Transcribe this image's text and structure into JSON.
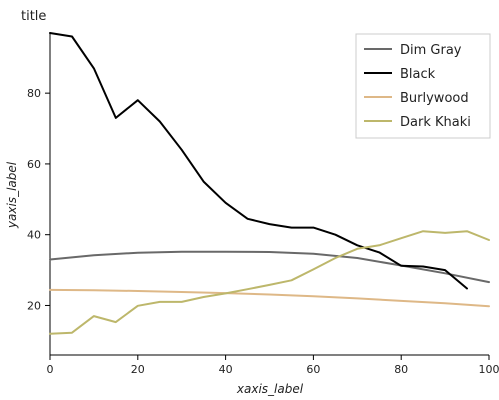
{
  "chart_data": {
    "type": "line",
    "title": "title",
    "xlabel": "xaxis_label",
    "ylabel": "yaxis_label",
    "xlim": [
      0,
      100
    ],
    "ylim": [
      6,
      97
    ],
    "xticks": [
      0,
      20,
      40,
      60,
      80,
      100
    ],
    "xtick_labels": [
      "0",
      "20",
      "40",
      "60",
      "80",
      "100"
    ],
    "yticks": [
      20,
      40,
      60,
      80
    ],
    "ytick_labels": [
      "20",
      "40",
      "60",
      "80"
    ],
    "grid": false,
    "legend_position": "top-right",
    "series": [
      {
        "name": "Dim Gray",
        "color": "#696969",
        "x": [
          0,
          10,
          20,
          30,
          40,
          50,
          60,
          70,
          80,
          90,
          100
        ],
        "y": [
          33.0,
          34.2,
          34.9,
          35.2,
          35.2,
          35.1,
          34.6,
          33.4,
          31.3,
          29.1,
          26.6
        ]
      },
      {
        "name": "Black",
        "color": "#000000",
        "x": [
          0,
          5,
          10,
          15,
          20,
          25,
          30,
          35,
          40,
          45,
          50,
          55,
          60,
          65,
          70,
          75,
          80,
          85,
          90,
          95
        ],
        "y": [
          97.0,
          96.0,
          87.0,
          73.0,
          78.0,
          72.0,
          64.0,
          55.0,
          49.0,
          44.5,
          43.0,
          42.0,
          42.0,
          40.0,
          37.0,
          35.0,
          31.2,
          31.0,
          30.0,
          24.8
        ]
      },
      {
        "name": "Burlywood",
        "color": "#deb887",
        "x": [
          0,
          10,
          20,
          30,
          40,
          50,
          60,
          70,
          80,
          90,
          100
        ],
        "y": [
          24.4,
          24.3,
          24.1,
          23.8,
          23.5,
          23.1,
          22.6,
          22.0,
          21.3,
          20.6,
          19.8
        ]
      },
      {
        "name": "Dark Khaki",
        "color": "#bdb76b",
        "x": [
          0,
          5,
          10,
          15,
          20,
          25,
          30,
          35,
          40,
          45,
          50,
          55,
          60,
          65,
          70,
          75,
          80,
          85,
          90,
          95,
          100
        ],
        "y": [
          12.0,
          12.3,
          17.0,
          15.3,
          19.9,
          21.0,
          21.0,
          22.4,
          23.4,
          24.6,
          25.8,
          27.1,
          30.2,
          33.4,
          36.0,
          37.0,
          39.0,
          41.0,
          40.5,
          41.0,
          38.5
        ]
      }
    ]
  }
}
